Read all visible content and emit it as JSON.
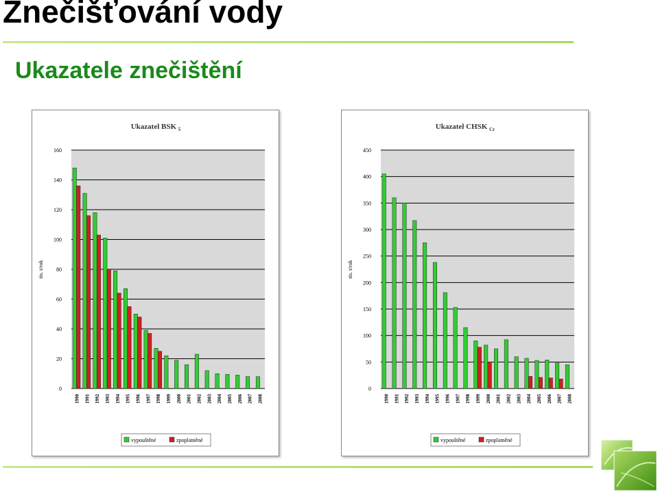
{
  "page": {
    "title": "Znečišťování vody",
    "subtitle": "Ukazatele znečištění"
  },
  "colors": {
    "discharged": "#33cc33",
    "charged": "#cc2222",
    "plot_bg": "#d9d9d9",
    "accent": "#8cc63f"
  },
  "chart_data": [
    {
      "type": "bar",
      "title": "Ukazatel BSK",
      "title_sub": "5",
      "ylabel": "tis. t/rok",
      "xlabel": "",
      "ylim": [
        0,
        160
      ],
      "yticks": [
        0,
        20,
        40,
        60,
        80,
        100,
        120,
        140,
        160
      ],
      "categories": [
        "1990",
        "1991",
        "1992",
        "1993",
        "1994",
        "1995",
        "1996",
        "1997",
        "1998",
        "1999",
        "2000",
        "2001",
        "2002",
        "2003",
        "2004",
        "2005",
        "2006",
        "2007",
        "2008"
      ],
      "series": [
        {
          "name": "vypouštěné",
          "values": [
            148,
            131,
            118,
            101,
            79,
            67,
            50,
            39,
            27,
            22,
            19,
            16,
            23,
            12,
            10,
            9.5,
            9,
            8,
            8
          ]
        },
        {
          "name": "zpoplatněné",
          "values": [
            136,
            116,
            103,
            80,
            64,
            55,
            48,
            37,
            25,
            null,
            null,
            null,
            null,
            null,
            null,
            null,
            null,
            null,
            null
          ]
        }
      ],
      "legend": "bottom"
    },
    {
      "type": "bar",
      "title": "Ukazatel CHSK",
      "title_sub": "Cr",
      "ylabel": "tis. t/rok",
      "xlabel": "",
      "ylim": [
        0,
        450
      ],
      "yticks": [
        0,
        50,
        100,
        150,
        200,
        250,
        300,
        350,
        400,
        450
      ],
      "categories": [
        "1990",
        "1991",
        "1992",
        "1993",
        "1994",
        "1995",
        "1996",
        "1997",
        "1998",
        "1999",
        "2000",
        "2001",
        "2002",
        "2003",
        "2004",
        "2005",
        "2006",
        "2007",
        "2008"
      ],
      "series": [
        {
          "name": "vypouštěné",
          "values": [
            405,
            360,
            350,
            317,
            275,
            238,
            181,
            153,
            115,
            90,
            82,
            75,
            92,
            60,
            57,
            53,
            54,
            48,
            45
          ]
        },
        {
          "name": "zpoplatněné",
          "values": [
            null,
            null,
            null,
            null,
            null,
            null,
            null,
            null,
            null,
            78,
            50,
            null,
            null,
            null,
            23,
            21,
            20,
            18,
            null
          ]
        }
      ],
      "legend": "bottom"
    }
  ]
}
